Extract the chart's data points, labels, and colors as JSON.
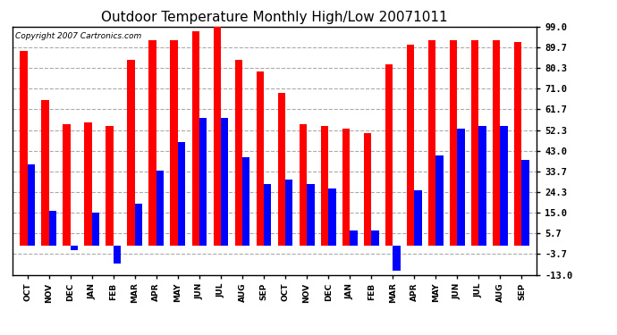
{
  "title": "Outdoor Temperature Monthly High/Low 20071011",
  "copyright": "Copyright 2007 Cartronics.com",
  "categories": [
    "OCT",
    "NOV",
    "DEC",
    "JAN",
    "FEB",
    "MAR",
    "APR",
    "MAY",
    "JUN",
    "JUL",
    "AUG",
    "SEP",
    "OCT",
    "NOV",
    "DEC",
    "JAN",
    "FEB",
    "MAR",
    "APR",
    "MAY",
    "JUN",
    "JUL",
    "AUG",
    "SEP"
  ],
  "highs": [
    88,
    66,
    55,
    56,
    54,
    84,
    93,
    93,
    97,
    99,
    84,
    79,
    69,
    55,
    54,
    53,
    51,
    82,
    91,
    93,
    93,
    93,
    93,
    92
  ],
  "lows": [
    37,
    16,
    -2,
    15,
    -8,
    19,
    34,
    47,
    58,
    58,
    40,
    28,
    30,
    28,
    26,
    7,
    7,
    -11,
    25,
    41,
    53,
    54,
    54,
    39
  ],
  "high_color": "#ff0000",
  "low_color": "#0000ff",
  "yticks": [
    99.0,
    89.7,
    80.3,
    71.0,
    61.7,
    52.3,
    43.0,
    33.7,
    24.3,
    15.0,
    5.7,
    -3.7,
    -13.0
  ],
  "ylim": [
    -13.0,
    99.0
  ],
  "bg_color": "#ffffff",
  "plot_bg": "#ffffff",
  "grid_color": "#aaaaaa",
  "bar_width": 0.35,
  "figsize": [
    6.9,
    3.75
  ],
  "title_fontsize": 11,
  "label_fontsize": 6.5,
  "tick_fontsize": 7.5,
  "copyright_fontsize": 6.5
}
